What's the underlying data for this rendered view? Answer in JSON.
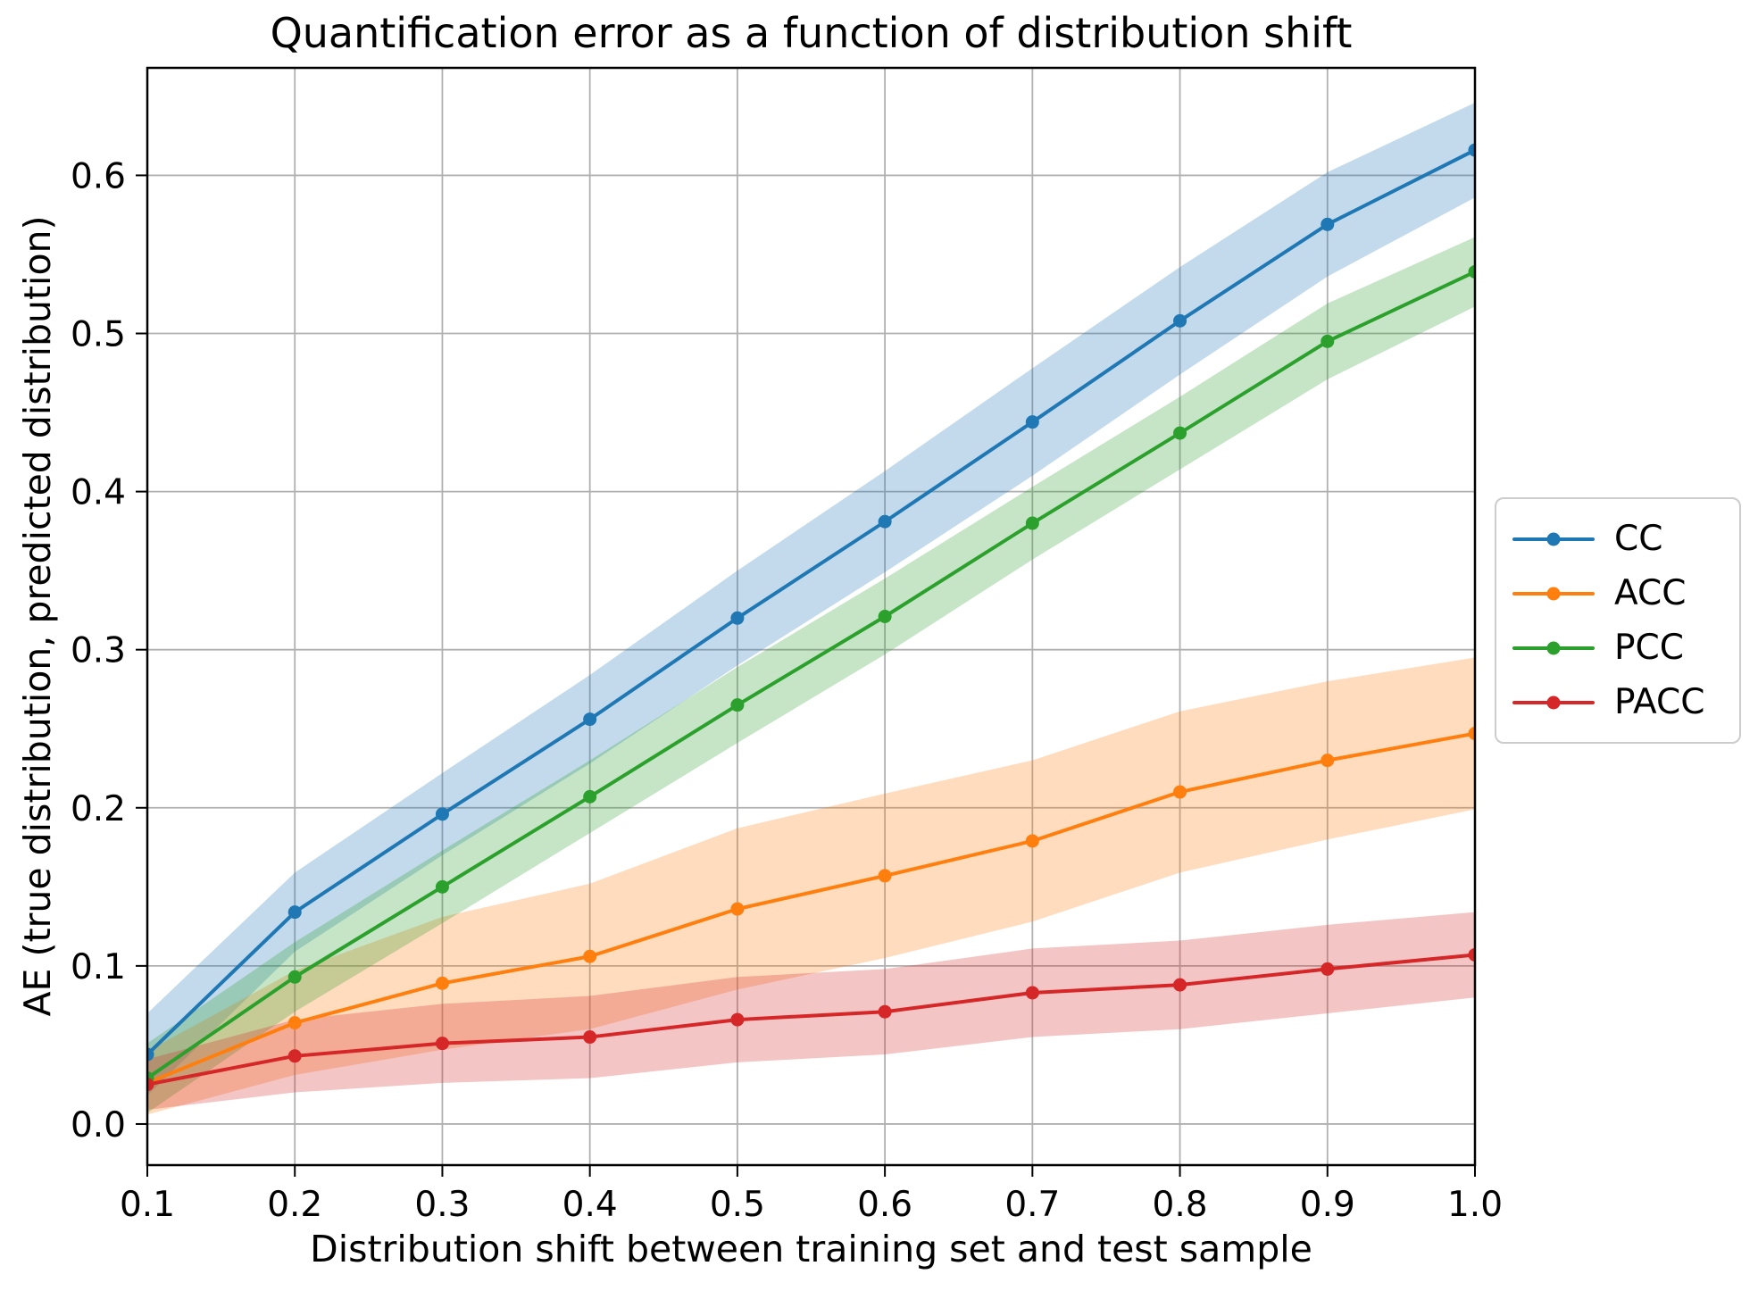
{
  "chart_data": {
    "type": "line",
    "title": "Quantification error as a function of distribution shift",
    "xlabel": "Distribution shift between training set and test sample",
    "ylabel": "AE (true distribution, predicted distribution)",
    "x": [
      0.1,
      0.2,
      0.3,
      0.4,
      0.5,
      0.6,
      0.7,
      0.8,
      0.9,
      1.0
    ],
    "xlim": [
      0.1,
      1.0
    ],
    "ylim": [
      -0.026,
      0.668
    ],
    "x_tick_labels": [
      "0.1",
      "0.2",
      "0.3",
      "0.4",
      "0.5",
      "0.6",
      "0.7",
      "0.8",
      "0.9",
      "1.0"
    ],
    "y_tick_labels": [
      "0.0",
      "0.1",
      "0.2",
      "0.3",
      "0.4",
      "0.5",
      "0.6"
    ],
    "grid": true,
    "grid_color": "#b0b0b0",
    "spine_color": "#000000",
    "band_opacity": 0.27,
    "legend_position": "center-right-outside",
    "series": [
      {
        "name": "CC",
        "color": "#1f77b4",
        "values": [
          0.044,
          0.134,
          0.196,
          0.256,
          0.32,
          0.381,
          0.444,
          0.508,
          0.569,
          0.616
        ],
        "band_halfwidth": [
          0.026,
          0.025,
          0.026,
          0.028,
          0.03,
          0.032,
          0.034,
          0.034,
          0.033,
          0.03
        ]
      },
      {
        "name": "ACC",
        "color": "#ff7f0e",
        "values": [
          0.026,
          0.064,
          0.089,
          0.106,
          0.136,
          0.157,
          0.179,
          0.21,
          0.23,
          0.247
        ],
        "band_halfwidth": [
          0.02,
          0.033,
          0.042,
          0.046,
          0.051,
          0.052,
          0.051,
          0.051,
          0.05,
          0.048
        ]
      },
      {
        "name": "PCC",
        "color": "#2ca02c",
        "values": [
          0.029,
          0.093,
          0.15,
          0.207,
          0.265,
          0.321,
          0.38,
          0.437,
          0.495,
          0.539
        ],
        "band_halfwidth": [
          0.022,
          0.022,
          0.023,
          0.023,
          0.024,
          0.024,
          0.023,
          0.023,
          0.024,
          0.022
        ]
      },
      {
        "name": "PACC",
        "color": "#d62728",
        "values": [
          0.025,
          0.043,
          0.051,
          0.055,
          0.066,
          0.071,
          0.083,
          0.088,
          0.098,
          0.107
        ],
        "band_halfwidth": [
          0.016,
          0.023,
          0.025,
          0.026,
          0.027,
          0.027,
          0.028,
          0.028,
          0.028,
          0.027
        ]
      }
    ]
  }
}
